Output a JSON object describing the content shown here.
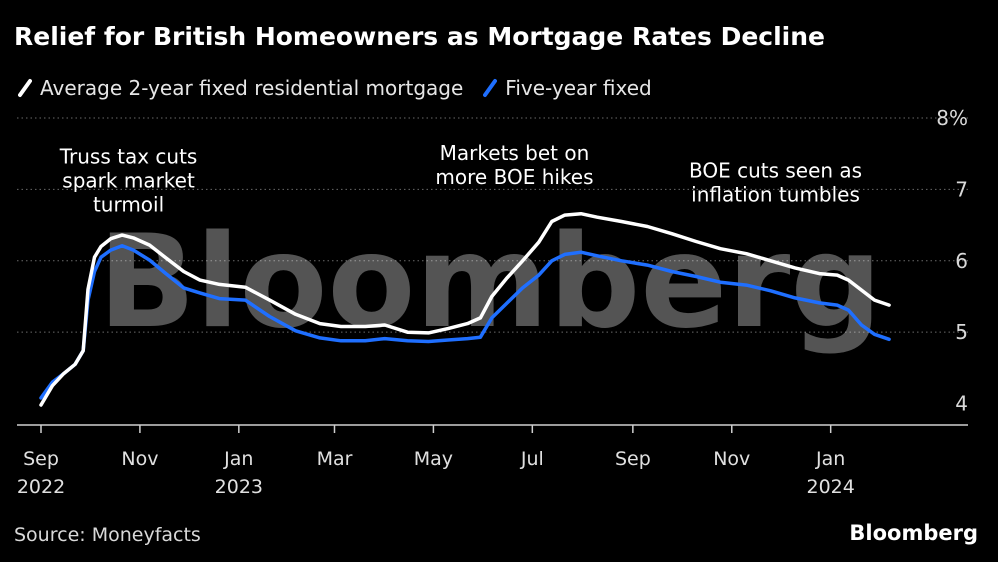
{
  "title": "Relief for British Homeowners as Mortgage Rates Decline",
  "source": "Source: Moneyfacts",
  "brand": "Bloomberg",
  "watermark": "Bloomberg",
  "colors": {
    "background": "#000000",
    "series_2yr": "#ffffff",
    "series_5yr": "#1f6fff",
    "grid": "#6a6a6a",
    "text": "#ffffff"
  },
  "chart_data": {
    "type": "line",
    "title": "Relief for British Homeowners as Mortgage Rates Decline",
    "ylabel": "",
    "xlabel": "",
    "ylim": [
      3.7,
      8
    ],
    "y_ticks": [
      4,
      5,
      6,
      7,
      8
    ],
    "y_tick_labels": [
      "4",
      "5",
      "6",
      "7",
      "8%"
    ],
    "xlim": [
      "2022-09-01",
      "2024-02-22"
    ],
    "x_ticks": [
      {
        "date": "2022-09-01",
        "label": "Sep",
        "sublabel": "2022"
      },
      {
        "date": "2022-11-01",
        "label": "Nov",
        "sublabel": ""
      },
      {
        "date": "2023-01-01",
        "label": "Jan",
        "sublabel": "2023"
      },
      {
        "date": "2023-03-01",
        "label": "Mar",
        "sublabel": ""
      },
      {
        "date": "2023-05-01",
        "label": "May",
        "sublabel": ""
      },
      {
        "date": "2023-07-01",
        "label": "Jul",
        "sublabel": ""
      },
      {
        "date": "2023-09-01",
        "label": "Sep",
        "sublabel": ""
      },
      {
        "date": "2023-11-01",
        "label": "Nov",
        "sublabel": ""
      },
      {
        "date": "2024-01-01",
        "label": "Jan",
        "sublabel": "2024"
      }
    ],
    "grid": true,
    "legend_position": "top-left",
    "series": [
      {
        "name": "Average 2-year fixed residential mortgage",
        "color": "#ffffff",
        "points": [
          [
            "2022-09-01",
            3.98
          ],
          [
            "2022-09-08",
            4.25
          ],
          [
            "2022-09-15",
            4.42
          ],
          [
            "2022-09-22",
            4.55
          ],
          [
            "2022-09-27",
            4.74
          ],
          [
            "2022-09-30",
            5.6
          ],
          [
            "2022-10-04",
            6.05
          ],
          [
            "2022-10-08",
            6.2
          ],
          [
            "2022-10-14",
            6.31
          ],
          [
            "2022-10-21",
            6.36
          ],
          [
            "2022-10-28",
            6.32
          ],
          [
            "2022-11-07",
            6.22
          ],
          [
            "2022-11-17",
            6.04
          ],
          [
            "2022-11-28",
            5.85
          ],
          [
            "2022-12-08",
            5.73
          ],
          [
            "2022-12-20",
            5.67
          ],
          [
            "2023-01-05",
            5.63
          ],
          [
            "2023-01-20",
            5.45
          ],
          [
            "2023-02-05",
            5.25
          ],
          [
            "2023-02-20",
            5.12
          ],
          [
            "2023-03-05",
            5.08
          ],
          [
            "2023-03-20",
            5.08
          ],
          [
            "2023-04-01",
            5.1
          ],
          [
            "2023-04-15",
            5.0
          ],
          [
            "2023-04-28",
            4.99
          ],
          [
            "2023-05-10",
            5.05
          ],
          [
            "2023-05-22",
            5.12
          ],
          [
            "2023-05-30",
            5.2
          ],
          [
            "2023-06-06",
            5.5
          ],
          [
            "2023-06-15",
            5.75
          ],
          [
            "2023-06-25",
            6.0
          ],
          [
            "2023-07-05",
            6.26
          ],
          [
            "2023-07-13",
            6.55
          ],
          [
            "2023-07-21",
            6.64
          ],
          [
            "2023-07-31",
            6.66
          ],
          [
            "2023-08-10",
            6.61
          ],
          [
            "2023-08-25",
            6.55
          ],
          [
            "2023-09-10",
            6.48
          ],
          [
            "2023-09-25",
            6.38
          ],
          [
            "2023-10-10",
            6.27
          ],
          [
            "2023-10-25",
            6.17
          ],
          [
            "2023-11-10",
            6.1
          ],
          [
            "2023-11-25",
            6.0
          ],
          [
            "2023-12-10",
            5.9
          ],
          [
            "2023-12-25",
            5.82
          ],
          [
            "2024-01-05",
            5.8
          ],
          [
            "2024-01-12",
            5.73
          ],
          [
            "2024-01-20",
            5.59
          ],
          [
            "2024-01-28",
            5.45
          ],
          [
            "2024-02-06",
            5.38
          ]
        ]
      },
      {
        "name": "Five-year fixed",
        "color": "#1f6fff",
        "points": [
          [
            "2022-09-01",
            4.08
          ],
          [
            "2022-09-08",
            4.3
          ],
          [
            "2022-09-15",
            4.42
          ],
          [
            "2022-09-22",
            4.55
          ],
          [
            "2022-09-27",
            4.74
          ],
          [
            "2022-09-30",
            5.45
          ],
          [
            "2022-10-04",
            5.85
          ],
          [
            "2022-10-08",
            6.05
          ],
          [
            "2022-10-14",
            6.15
          ],
          [
            "2022-10-21",
            6.21
          ],
          [
            "2022-10-28",
            6.15
          ],
          [
            "2022-11-07",
            6.01
          ],
          [
            "2022-11-17",
            5.82
          ],
          [
            "2022-11-28",
            5.62
          ],
          [
            "2022-12-08",
            5.55
          ],
          [
            "2022-12-20",
            5.47
          ],
          [
            "2023-01-05",
            5.45
          ],
          [
            "2023-01-20",
            5.22
          ],
          [
            "2023-02-05",
            5.02
          ],
          [
            "2023-02-20",
            4.92
          ],
          [
            "2023-03-05",
            4.88
          ],
          [
            "2023-03-20",
            4.88
          ],
          [
            "2023-04-01",
            4.91
          ],
          [
            "2023-04-15",
            4.88
          ],
          [
            "2023-04-28",
            4.87
          ],
          [
            "2023-05-10",
            4.89
          ],
          [
            "2023-05-22",
            4.91
          ],
          [
            "2023-05-30",
            4.93
          ],
          [
            "2023-06-06",
            5.2
          ],
          [
            "2023-06-15",
            5.4
          ],
          [
            "2023-06-25",
            5.62
          ],
          [
            "2023-07-05",
            5.8
          ],
          [
            "2023-07-13",
            6.0
          ],
          [
            "2023-07-21",
            6.09
          ],
          [
            "2023-07-31",
            6.12
          ],
          [
            "2023-08-10",
            6.07
          ],
          [
            "2023-08-25",
            6.0
          ],
          [
            "2023-09-10",
            5.94
          ],
          [
            "2023-09-25",
            5.85
          ],
          [
            "2023-10-10",
            5.78
          ],
          [
            "2023-10-25",
            5.7
          ],
          [
            "2023-11-10",
            5.66
          ],
          [
            "2023-11-25",
            5.58
          ],
          [
            "2023-12-10",
            5.48
          ],
          [
            "2023-12-25",
            5.41
          ],
          [
            "2024-01-05",
            5.38
          ],
          [
            "2024-01-12",
            5.31
          ],
          [
            "2024-01-20",
            5.1
          ],
          [
            "2024-01-28",
            4.97
          ],
          [
            "2024-02-06",
            4.9
          ]
        ]
      }
    ],
    "annotations": [
      {
        "lines": [
          "Truss tax cuts",
          "spark market",
          "turmoil"
        ],
        "date": "2022-10-25",
        "y": 7.0
      },
      {
        "lines": [
          "Markets bet on",
          "more BOE hikes"
        ],
        "date": "2023-06-20",
        "y": 7.05
      },
      {
        "lines": [
          "BOE cuts seen as",
          "inflation tumbles"
        ],
        "date": "2023-11-28",
        "y": 6.8
      }
    ]
  }
}
